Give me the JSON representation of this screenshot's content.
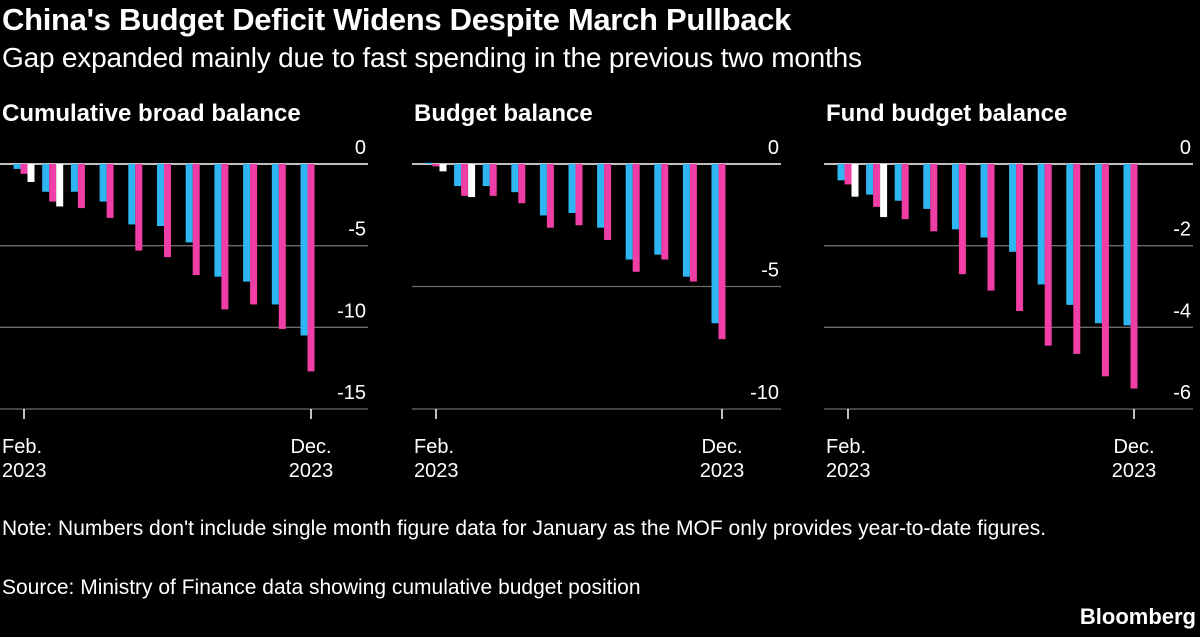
{
  "header": {
    "title": "China's Budget Deficit Widens Despite March Pullback",
    "subtitle": "Gap expanded mainly due to fast spending in the previous two months"
  },
  "footer": {
    "note": "Note: Numbers don't include single month figure data for January as the MOF only provides year-to-date figures.",
    "source": "Source: Ministry of Finance data showing cumulative budget position",
    "brand": "Bloomberg"
  },
  "colors": {
    "background": "#000000",
    "series_blue": "#2EB6F2",
    "series_pink": "#F03EA6",
    "series_white": "#FFFFFF",
    "grid": "#6b6b6b",
    "zero_line": "#ffffff"
  },
  "chart_data": [
    {
      "type": "bar",
      "title": "Cumulative broad balance",
      "categories": [
        "Feb",
        "Mar",
        "Apr",
        "May",
        "Jun",
        "Jul",
        "Aug",
        "Sep",
        "Oct",
        "Nov",
        "Dec"
      ],
      "x_tick_labels": [
        {
          "month": "Feb.",
          "year": "2023"
        },
        {
          "month": "Dec.",
          "year": "2023"
        }
      ],
      "y_ticks": [
        0,
        -5,
        -10,
        -15
      ],
      "y_tick_labels": [
        "0",
        "-5",
        "-10",
        "-15"
      ],
      "ylim": [
        -15,
        0
      ],
      "grid": true,
      "series": [
        {
          "color": "#2EB6F2",
          "values": [
            -0.3,
            -1.7,
            -1.7,
            -2.3,
            -3.7,
            -3.8,
            -4.8,
            -6.9,
            -7.2,
            -8.6,
            -10.5
          ]
        },
        {
          "color": "#F03EA6",
          "values": [
            -0.6,
            -2.3,
            -2.7,
            -3.3,
            -5.3,
            -5.7,
            -6.8,
            -8.9,
            -8.6,
            -10.1,
            -12.7
          ]
        },
        {
          "color": "#FFFFFF",
          "values": [
            -1.1,
            -2.6,
            null,
            null,
            null,
            null,
            null,
            null,
            null,
            null,
            null
          ]
        }
      ]
    },
    {
      "type": "bar",
      "title": "Budget balance",
      "categories": [
        "Feb",
        "Mar",
        "Apr",
        "May",
        "Jun",
        "Jul",
        "Aug",
        "Sep",
        "Oct",
        "Nov",
        "Dec"
      ],
      "x_tick_labels": [
        {
          "month": "Feb.",
          "year": "2023"
        },
        {
          "month": "Dec.",
          "year": "2023"
        }
      ],
      "y_ticks": [
        0,
        -5,
        -10
      ],
      "y_tick_labels": [
        "0",
        "-5",
        "-10"
      ],
      "ylim": [
        -10,
        0
      ],
      "grid": true,
      "series": [
        {
          "color": "#2EB6F2",
          "values": [
            0.05,
            -0.9,
            -0.9,
            -1.15,
            -2.1,
            -2.0,
            -2.6,
            -3.9,
            -3.7,
            -4.6,
            -6.5
          ]
        },
        {
          "color": "#F03EA6",
          "values": [
            -0.1,
            -1.3,
            -1.3,
            -1.6,
            -2.6,
            -2.5,
            -3.1,
            -4.4,
            -3.9,
            -4.8,
            -7.15
          ]
        },
        {
          "color": "#FFFFFF",
          "values": [
            -0.3,
            -1.35,
            null,
            null,
            null,
            null,
            null,
            null,
            null,
            null,
            null
          ]
        }
      ]
    },
    {
      "type": "bar",
      "title": "Fund budget balance",
      "categories": [
        "Feb",
        "Mar",
        "Apr",
        "May",
        "Jun",
        "Jul",
        "Aug",
        "Sep",
        "Oct",
        "Nov",
        "Dec"
      ],
      "x_tick_labels": [
        {
          "month": "Feb.",
          "year": "2023"
        },
        {
          "month": "Dec.",
          "year": "2023"
        }
      ],
      "y_ticks": [
        0,
        -2,
        -4,
        -6
      ],
      "y_tick_labels": [
        "0",
        "-2",
        "-4",
        "-6"
      ],
      "ylim": [
        -6,
        0
      ],
      "grid": true,
      "series": [
        {
          "color": "#2EB6F2",
          "values": [
            -0.4,
            -0.75,
            -0.9,
            -1.1,
            -1.6,
            -1.8,
            -2.15,
            -2.95,
            -3.45,
            -3.9,
            -3.95
          ]
        },
        {
          "color": "#F03EA6",
          "values": [
            -0.5,
            -1.05,
            -1.35,
            -1.65,
            -2.7,
            -3.1,
            -3.6,
            -4.45,
            -4.65,
            -5.2,
            -5.5
          ]
        },
        {
          "color": "#FFFFFF",
          "values": [
            -0.8,
            -1.3,
            null,
            null,
            null,
            null,
            null,
            null,
            null,
            null,
            null
          ]
        }
      ]
    }
  ]
}
